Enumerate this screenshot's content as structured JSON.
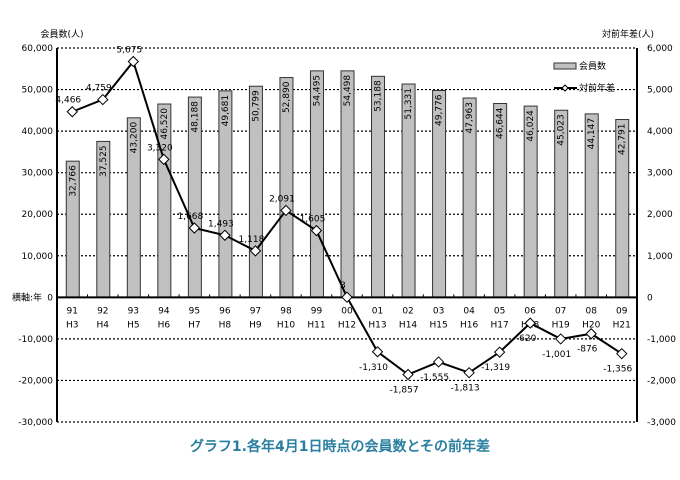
{
  "chart_data": {
    "type": "bar+line",
    "title": "グラフ1.各年4月1日時点の会員数とその前年差",
    "ylabel_left": "会員数(人)",
    "ylabel_right": "対前年差(人)",
    "xlabel": "横軸:年",
    "categories": [
      "91",
      "92",
      "93",
      "94",
      "95",
      "96",
      "97",
      "98",
      "99",
      "00",
      "01",
      "02",
      "03",
      "04",
      "05",
      "06",
      "07",
      "08",
      "09"
    ],
    "categories_sub": [
      "H3",
      "H4",
      "H5",
      "H6",
      "H7",
      "H8",
      "H9",
      "H10",
      "H11",
      "H12",
      "H13",
      "H14",
      "H15",
      "H16",
      "H17",
      "H18",
      "H19",
      "H20",
      "H21"
    ],
    "series": [
      {
        "name": "会員数",
        "type": "bar",
        "axis": "left",
        "values": [
          32766,
          37525,
          43200,
          46520,
          48188,
          49681,
          50799,
          52890,
          54495,
          54498,
          53188,
          51331,
          49776,
          47963,
          46644,
          46024,
          45023,
          44147,
          42791
        ]
      },
      {
        "name": "対前年差",
        "type": "line",
        "axis": "right",
        "values": [
          4466,
          4759,
          5675,
          3320,
          1668,
          1493,
          1118,
          2091,
          1605,
          3,
          -1310,
          -1857,
          -1555,
          -1813,
          -1319,
          -620,
          -1001,
          -876,
          -1356
        ]
      }
    ],
    "ylim_left": [
      -30000,
      60000
    ],
    "ylim_right": [
      -3000,
      6000
    ],
    "yticks_left": [
      "60,000",
      "50,000",
      "40,000",
      "30,000",
      "20,000",
      "10,000",
      "0",
      "-10,000",
      "-20,000",
      "-30,000"
    ],
    "yticks_right": [
      "6,000",
      "5,000",
      "4,000",
      "3,000",
      "2,000",
      "1,000",
      "0",
      "-1,000",
      "-2,000",
      "-3,000"
    ],
    "grid": true,
    "legend": "top-right"
  }
}
